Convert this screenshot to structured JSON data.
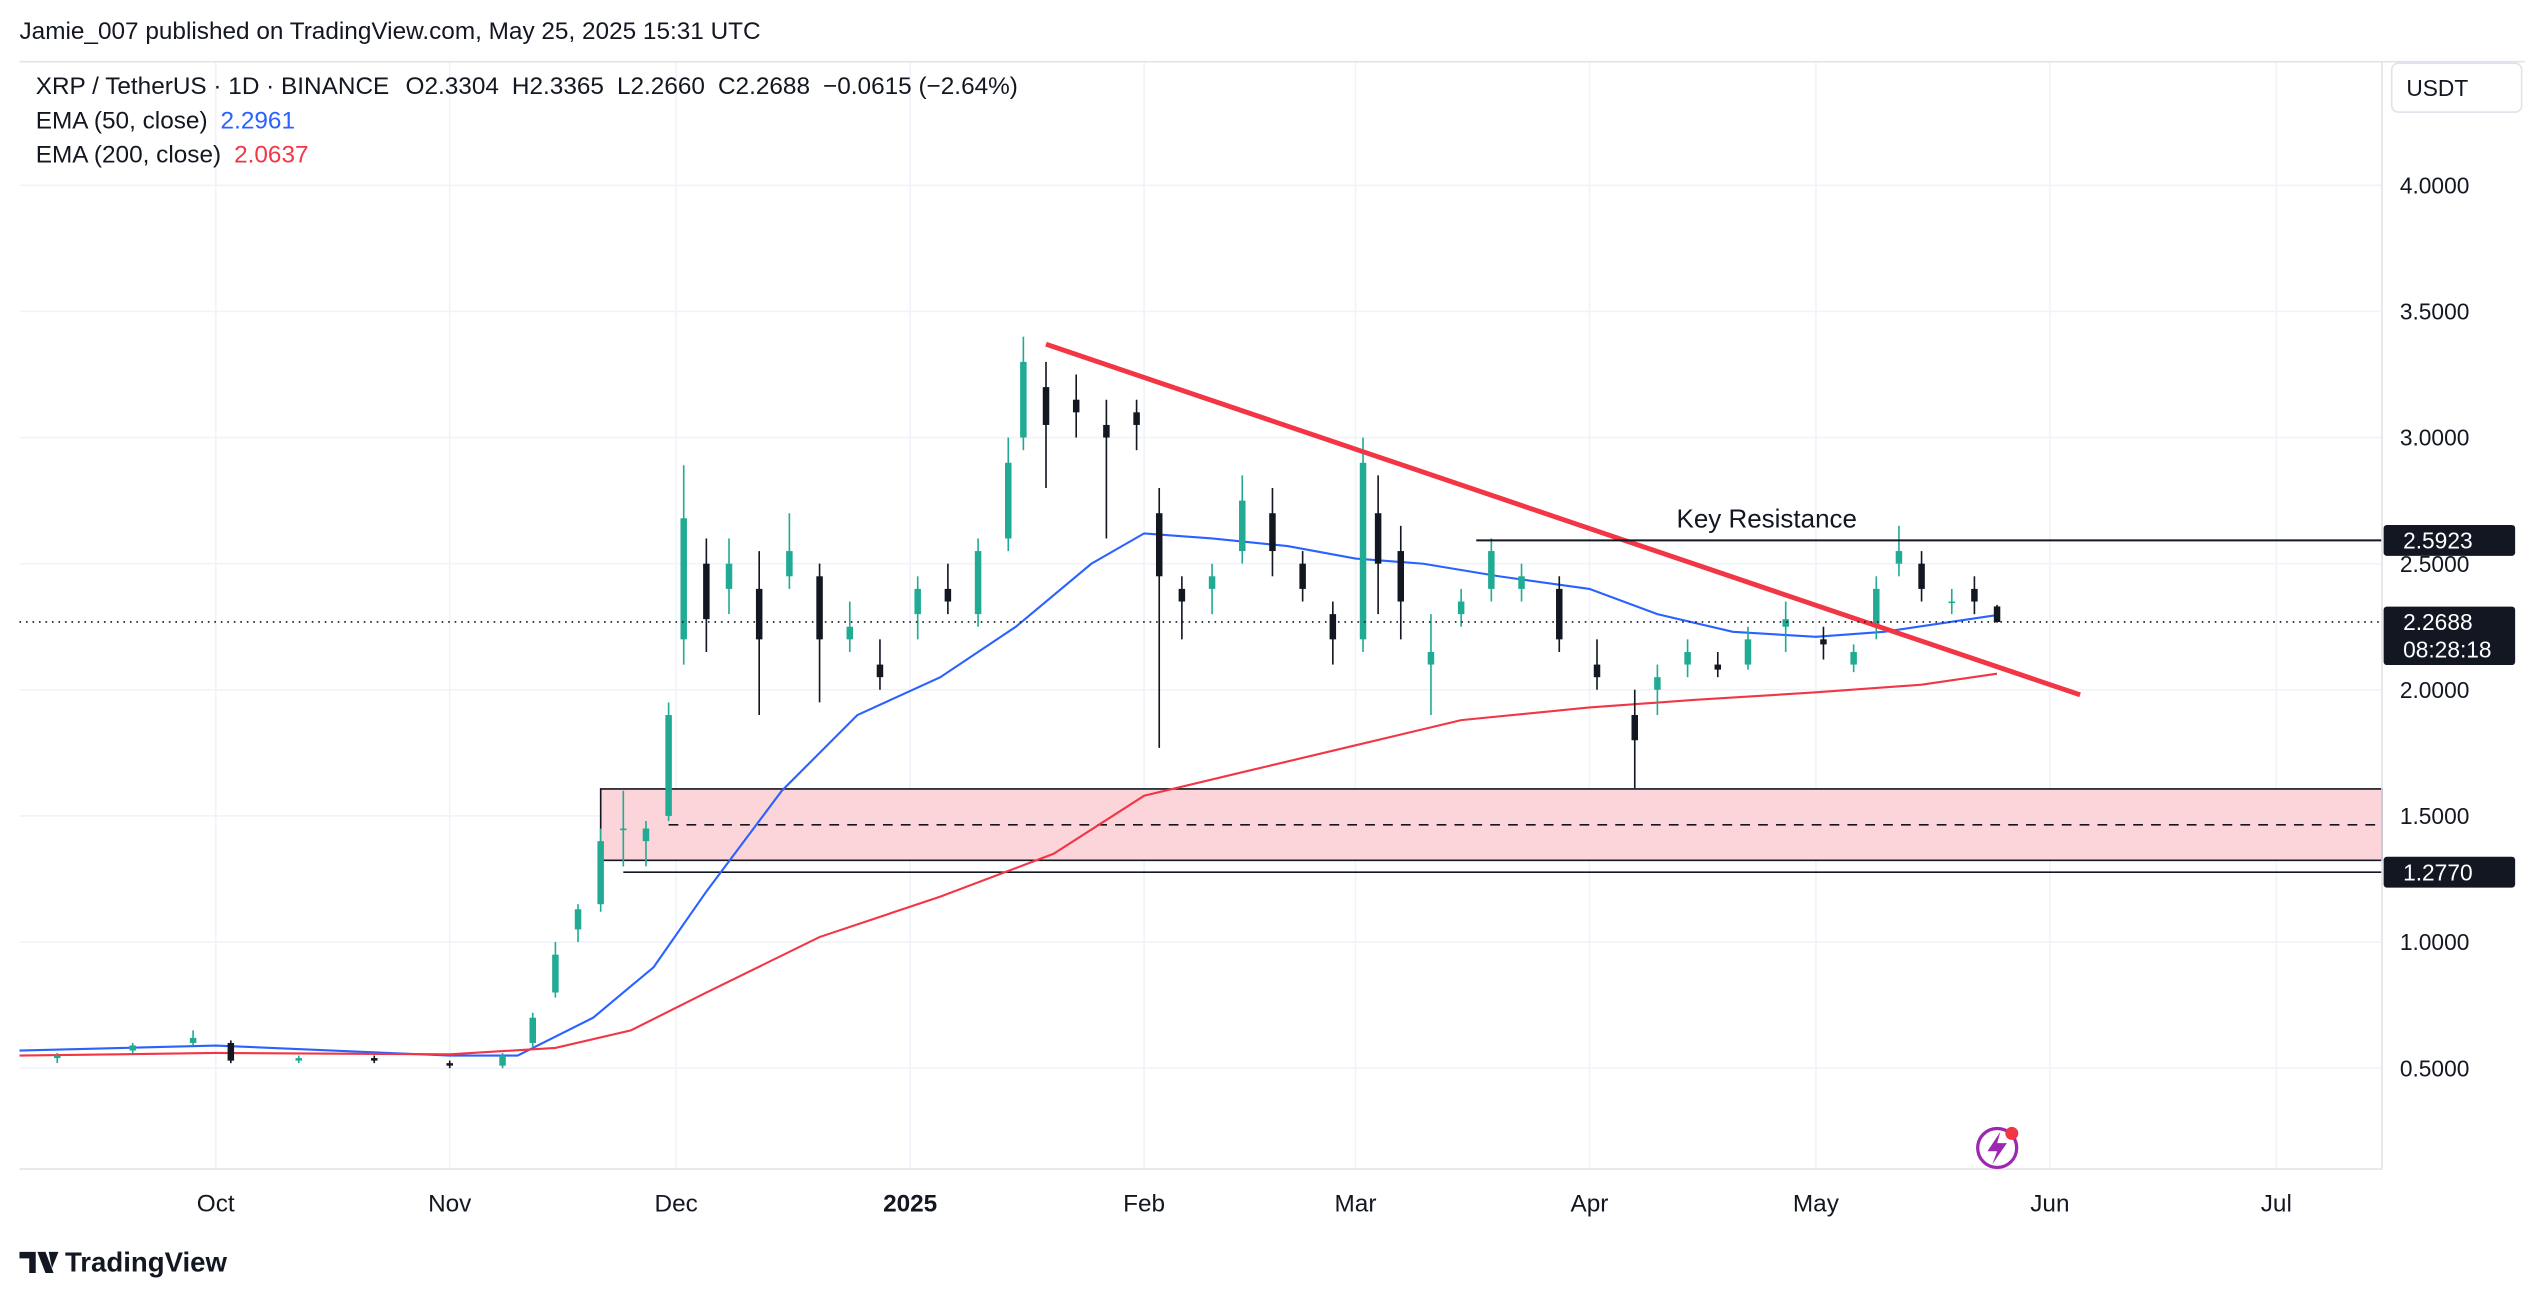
{
  "header": {
    "publisher": "Jamie_007 published on TradingView.com, May 25, 2025 15:31 UTC",
    "footer": "TradingView"
  },
  "chart_data": {
    "type": "candlestick",
    "title": "XRP / TetherUS · 1D · BINANCE",
    "ohlc_legend": {
      "labels": [
        "O",
        "H",
        "L",
        "C"
      ],
      "values": [
        2.3304,
        2.3365,
        2.266,
        2.2688
      ],
      "value_labels": [
        "2.3304",
        "2.3365",
        "2.2660",
        "2.2688"
      ],
      "change": "−0.0615 (−2.64%)"
    },
    "currency": "USDT",
    "up_color": "#22ab94",
    "down_color": "#131722",
    "x": [
      "2024-09-10",
      "2024-09-20",
      "2024-09-28",
      "2024-10-03",
      "2024-10-12",
      "2024-10-22",
      "2024-11-01",
      "2024-11-08",
      "2024-11-12",
      "2024-11-15",
      "2024-11-18",
      "2024-11-21",
      "2024-11-24",
      "2024-11-27",
      "2024-11-30",
      "2024-12-02",
      "2024-12-05",
      "2024-12-08",
      "2024-12-12",
      "2024-12-16",
      "2024-12-20",
      "2024-12-24",
      "2024-12-28",
      "2025-01-02",
      "2025-01-06",
      "2025-01-10",
      "2025-01-14",
      "2025-01-16",
      "2025-01-19",
      "2025-01-23",
      "2025-01-27",
      "2025-01-31",
      "2025-02-03",
      "2025-02-06",
      "2025-02-10",
      "2025-02-14",
      "2025-02-18",
      "2025-02-22",
      "2025-02-26",
      "2025-03-02",
      "2025-03-04",
      "2025-03-07",
      "2025-03-11",
      "2025-03-15",
      "2025-03-19",
      "2025-03-23",
      "2025-03-28",
      "2025-04-02",
      "2025-04-07",
      "2025-04-10",
      "2025-04-14",
      "2025-04-18",
      "2025-04-22",
      "2025-04-27",
      "2025-05-02",
      "2025-05-06",
      "2025-05-09",
      "2025-05-12",
      "2025-05-15",
      "2025-05-19",
      "2025-05-22",
      "2025-05-25"
    ],
    "open": [
      0.54,
      0.57,
      0.6,
      0.6,
      0.53,
      0.54,
      0.52,
      0.51,
      0.6,
      0.8,
      1.05,
      1.15,
      1.45,
      1.4,
      1.5,
      2.2,
      2.5,
      2.4,
      2.4,
      2.45,
      2.45,
      2.2,
      2.1,
      2.3,
      2.4,
      2.3,
      2.6,
      3.0,
      3.2,
      3.15,
      3.05,
      3.1,
      2.7,
      2.4,
      2.4,
      2.55,
      2.7,
      2.5,
      2.3,
      2.2,
      2.7,
      2.55,
      2.1,
      2.3,
      2.4,
      2.4,
      2.4,
      2.1,
      1.9,
      2.0,
      2.1,
      2.1,
      2.1,
      2.25,
      2.2,
      2.1,
      2.25,
      2.5,
      2.5,
      2.35,
      2.4,
      2.3304
    ],
    "high": [
      0.56,
      0.6,
      0.65,
      0.61,
      0.55,
      0.55,
      0.53,
      0.56,
      0.72,
      1.0,
      1.15,
      1.45,
      1.6,
      1.48,
      1.95,
      2.89,
      2.6,
      2.6,
      2.55,
      2.7,
      2.5,
      2.35,
      2.2,
      2.45,
      2.5,
      2.6,
      3.0,
      3.4,
      3.3,
      3.25,
      3.15,
      3.15,
      2.8,
      2.45,
      2.5,
      2.85,
      2.8,
      2.55,
      2.35,
      3.0,
      2.85,
      2.65,
      2.3,
      2.4,
      2.6,
      2.5,
      2.45,
      2.2,
      2.0,
      2.1,
      2.2,
      2.15,
      2.25,
      2.35,
      2.25,
      2.18,
      2.45,
      2.65,
      2.55,
      2.4,
      2.45,
      2.3365
    ],
    "low": [
      0.52,
      0.56,
      0.59,
      0.52,
      0.52,
      0.52,
      0.5,
      0.5,
      0.58,
      0.78,
      1.0,
      1.12,
      1.3,
      1.3,
      1.48,
      2.1,
      2.15,
      2.3,
      1.9,
      2.4,
      1.95,
      2.15,
      2.0,
      2.2,
      2.3,
      2.25,
      2.55,
      2.95,
      2.8,
      3.0,
      2.6,
      2.95,
      1.77,
      2.2,
      2.3,
      2.5,
      2.45,
      2.35,
      2.1,
      2.15,
      2.3,
      2.2,
      1.9,
      2.25,
      2.35,
      2.35,
      2.15,
      2.0,
      1.61,
      1.9,
      2.05,
      2.05,
      2.08,
      2.15,
      2.12,
      2.07,
      2.2,
      2.45,
      2.35,
      2.3,
      2.3,
      2.266
    ],
    "close": [
      0.55,
      0.59,
      0.62,
      0.53,
      0.54,
      0.53,
      0.51,
      0.55,
      0.7,
      0.95,
      1.13,
      1.4,
      1.45,
      1.45,
      1.9,
      2.68,
      2.28,
      2.5,
      2.2,
      2.55,
      2.2,
      2.25,
      2.05,
      2.4,
      2.35,
      2.55,
      2.9,
      3.3,
      3.05,
      3.1,
      3.0,
      3.05,
      2.45,
      2.35,
      2.45,
      2.75,
      2.55,
      2.4,
      2.2,
      2.9,
      2.5,
      2.35,
      2.15,
      2.35,
      2.55,
      2.45,
      2.2,
      2.05,
      1.8,
      2.05,
      2.15,
      2.08,
      2.2,
      2.28,
      2.18,
      2.15,
      2.4,
      2.55,
      2.4,
      2.35,
      2.35,
      2.2688
    ],
    "lines": [
      {
        "name": "EMA (50, close)",
        "color": "#2962ff",
        "last_value": 2.2961,
        "x": [
          "2024-09-05",
          "2024-10-01",
          "2024-11-01",
          "2024-11-10",
          "2024-11-20",
          "2024-11-28",
          "2024-12-05",
          "2024-12-15",
          "2024-12-25",
          "2025-01-05",
          "2025-01-15",
          "2025-01-25",
          "2025-02-01",
          "2025-02-10",
          "2025-02-20",
          "2025-03-01",
          "2025-03-10",
          "2025-03-20",
          "2025-04-01",
          "2025-04-10",
          "2025-04-20",
          "2025-05-01",
          "2025-05-10",
          "2025-05-25"
        ],
        "values": [
          0.57,
          0.59,
          0.55,
          0.55,
          0.7,
          0.9,
          1.2,
          1.6,
          1.9,
          2.05,
          2.25,
          2.5,
          2.62,
          2.6,
          2.57,
          2.52,
          2.5,
          2.45,
          2.4,
          2.3,
          2.23,
          2.21,
          2.23,
          2.2961
        ]
      },
      {
        "name": "EMA (200, close)",
        "color": "#f23645",
        "last_value": 2.0637,
        "x": [
          "2024-09-05",
          "2024-10-01",
          "2024-11-01",
          "2024-11-15",
          "2024-11-25",
          "2024-12-05",
          "2024-12-20",
          "2025-01-05",
          "2025-01-20",
          "2025-02-01",
          "2025-02-15",
          "2025-03-01",
          "2025-03-15",
          "2025-04-01",
          "2025-04-15",
          "2025-05-01",
          "2025-05-15",
          "2025-05-25"
        ],
        "values": [
          0.55,
          0.56,
          0.555,
          0.58,
          0.65,
          0.8,
          1.02,
          1.18,
          1.35,
          1.58,
          1.68,
          1.78,
          1.88,
          1.93,
          1.96,
          1.99,
          2.02,
          2.0637
        ]
      }
    ],
    "trendline": {
      "color": "#f23645",
      "x": [
        "2025-01-19",
        "2025-06-05"
      ],
      "values": [
        3.37,
        1.98
      ]
    },
    "resistance": {
      "name": "Key Resistance",
      "value": 2.5923,
      "x_start": "2025-03-17"
    },
    "support": {
      "value": 1.277,
      "value_label": "1.2770",
      "x_start": "2024-11-24"
    },
    "zone": {
      "x_start": "2024-11-21",
      "top": 1.607,
      "bottom": 1.324,
      "mid": 1.465,
      "mid_x_start": "2024-11-30",
      "color": "#fcd5da"
    },
    "last_price": {
      "value": 2.2688,
      "countdown": "08:28:18"
    },
    "xlim": [
      "2024-09-05",
      "2025-07-15"
    ],
    "xticks": [
      {
        "value": "2024-10-01",
        "label": "Oct"
      },
      {
        "value": "2024-11-01",
        "label": "Nov"
      },
      {
        "value": "2024-12-01",
        "label": "Dec"
      },
      {
        "value": "2025-01-01",
        "label": "2025"
      },
      {
        "value": "2025-02-01",
        "label": "Feb"
      },
      {
        "value": "2025-03-01",
        "label": "Mar"
      },
      {
        "value": "2025-04-01",
        "label": "Apr"
      },
      {
        "value": "2025-05-01",
        "label": "May"
      },
      {
        "value": "2025-06-01",
        "label": "Jun"
      },
      {
        "value": "2025-07-01",
        "label": "Jul"
      }
    ],
    "ylim": [
      0.1,
      4.49
    ],
    "yticks": [
      {
        "value": 0.5,
        "label": "0.5000"
      },
      {
        "value": 1,
        "label": "1.0000"
      },
      {
        "value": 1.5,
        "label": "1.5000"
      },
      {
        "value": 2,
        "label": "2.0000"
      },
      {
        "value": 2.5,
        "label": "2.5000"
      },
      {
        "value": 3,
        "label": "3.0000"
      },
      {
        "value": 3.5,
        "label": "3.5000"
      },
      {
        "value": 4,
        "label": "4.0000"
      }
    ],
    "grid": true
  }
}
